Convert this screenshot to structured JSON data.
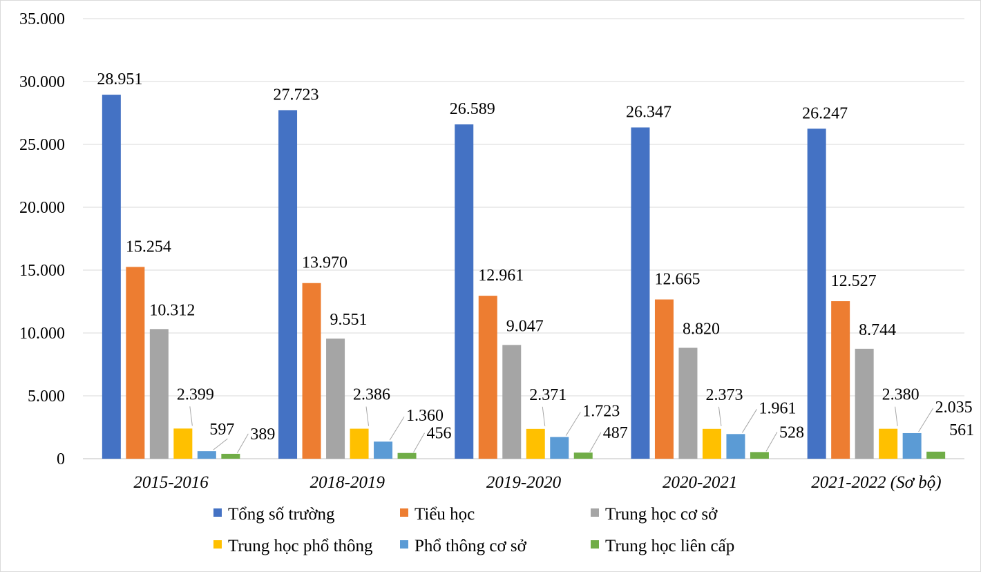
{
  "chart_data": {
    "type": "bar",
    "categories": [
      "2015-2016",
      "2018-2019",
      "2019-2020",
      "2020-2021",
      "2021-2022 (Sơ bộ)"
    ],
    "series": [
      {
        "name": "Tổng số trường",
        "color": "#4472C4",
        "values": [
          28951,
          27723,
          26589,
          26347,
          26247
        ],
        "labels": [
          "28.951",
          "27.723",
          "26.589",
          "26.347",
          "26.247"
        ]
      },
      {
        "name": "Tiểu học",
        "color": "#ED7D31",
        "values": [
          15254,
          13970,
          12961,
          12665,
          12527
        ],
        "labels": [
          "15.254",
          "13.970",
          "12.961",
          "12.665",
          "12.527"
        ]
      },
      {
        "name": "Trung học cơ sở",
        "color": "#A5A5A5",
        "values": [
          10312,
          9551,
          9047,
          8820,
          8744
        ],
        "labels": [
          "10.312",
          "9.551",
          "9.047",
          "8.820",
          "8.744"
        ]
      },
      {
        "name": "Trung học phổ thông",
        "color": "#FFC000",
        "values": [
          2399,
          2386,
          2371,
          2373,
          2380
        ],
        "labels": [
          "2.399",
          "2.386",
          "2.371",
          "2.373",
          "2.380"
        ]
      },
      {
        "name": "Phổ thông cơ sở",
        "color": "#5B9BD5",
        "values": [
          597,
          1360,
          1723,
          1961,
          2035
        ],
        "labels": [
          "597",
          "1.360",
          "1.723",
          "1.961",
          "2.035"
        ]
      },
      {
        "name": "Trung học liên cấp",
        "color": "#70AD47",
        "values": [
          389,
          456,
          487,
          528,
          561
        ],
        "labels": [
          "389",
          "456",
          "487",
          "528",
          "561"
        ]
      }
    ],
    "ylim": [
      0,
      35000
    ],
    "yticks": [
      0,
      5000,
      10000,
      15000,
      20000,
      25000,
      30000,
      35000
    ],
    "ytick_labels": [
      "0",
      "5.000",
      "10.000",
      "15.000",
      "20.000",
      "25.000",
      "30.000",
      "35.000"
    ],
    "grid": true,
    "legend_position": "bottom",
    "title": "",
    "xlabel": "",
    "ylabel": ""
  }
}
